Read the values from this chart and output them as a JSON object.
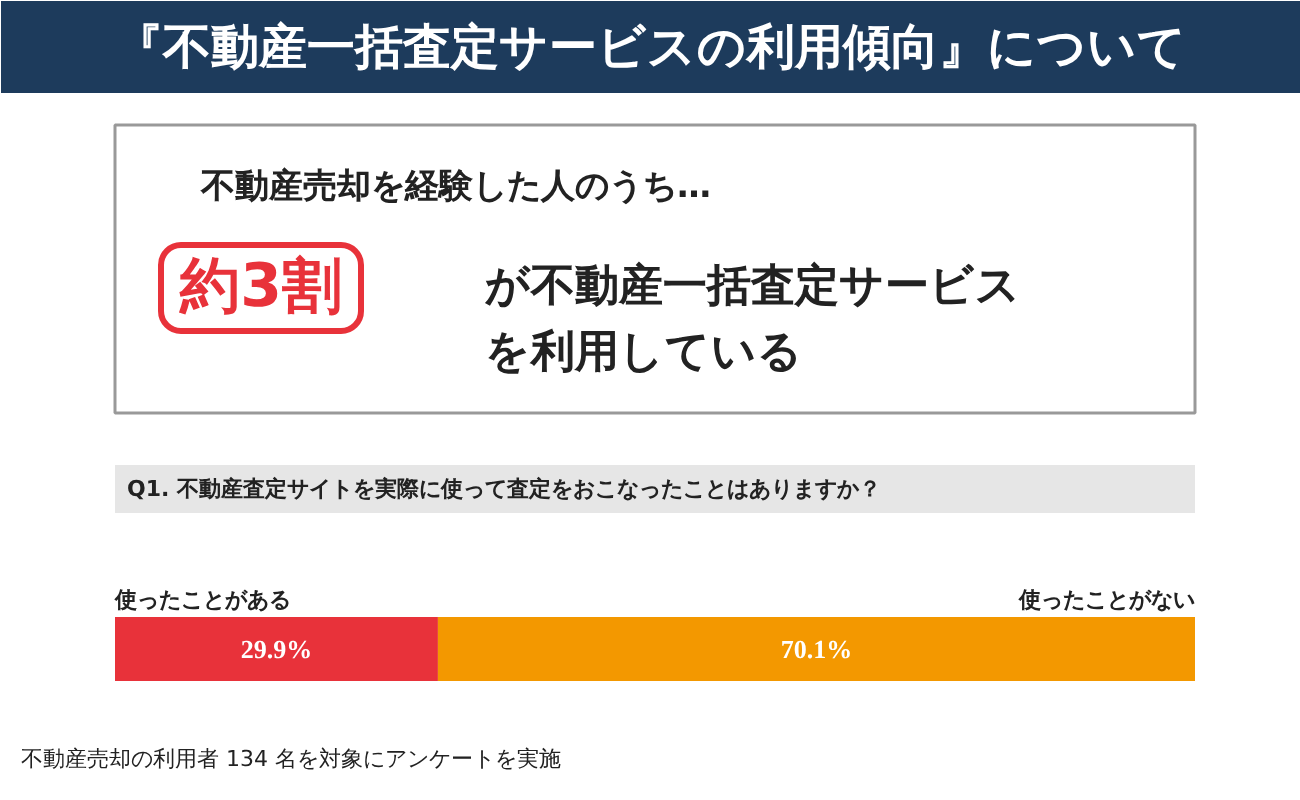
{
  "chart_data": {
    "type": "bar",
    "orientation": "horizontal",
    "stacked": true,
    "title": "『不動産一括査定サービスの利用傾向』について",
    "subtitle": "Q1. 不動産査定サイトを実際に使って査定をおこなったことはありますか？",
    "annotations": [
      "不動産売却を経験した人のうち…",
      "約3割",
      "が不動産一括査定サービス",
      "を利用している",
      "不動産売却の利用者 134 名を対象にアンケートを実施"
    ],
    "categories": [
      null
    ],
    "xlim": [
      0,
      100
    ],
    "tick_labels": false,
    "series": [
      {
        "name": "使ったことがある",
        "color": "#e8323a",
        "values": [
          29.9
        ],
        "value_labels": [
          "29.9%"
        ]
      },
      {
        "name": "使ったことがない",
        "color": "#f39800",
        "values": [
          70.1
        ],
        "value_labels": [
          "70.1%"
        ]
      }
    ]
  }
}
